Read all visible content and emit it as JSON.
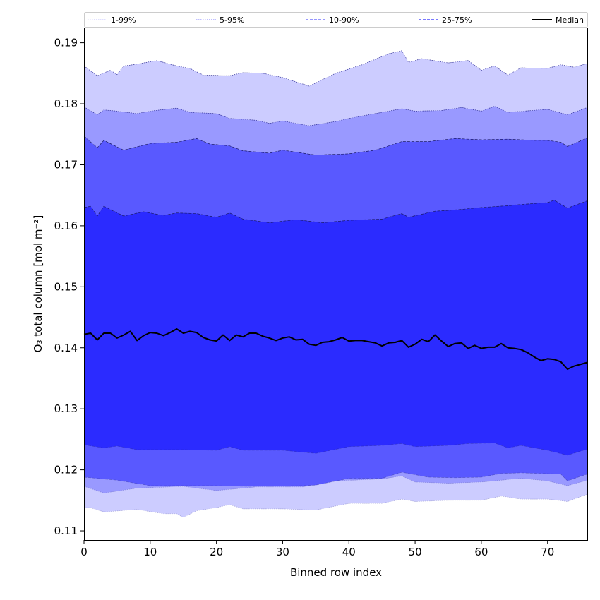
{
  "chart_data": {
    "type": "area",
    "xlabel": "Binned row index",
    "ylabel": "O₃ total column [mol m⁻²]",
    "xlim": [
      0,
      76
    ],
    "ylim": [
      0.1085,
      0.1925
    ],
    "xticks": [
      0,
      10,
      20,
      30,
      40,
      50,
      60,
      70
    ],
    "yticks": [
      0.11,
      0.12,
      0.13,
      0.14,
      0.15,
      0.16,
      0.17,
      0.18,
      0.19
    ],
    "legend_position": "top",
    "bands": [
      {
        "name": "1-99%",
        "color": "#ccccff",
        "line_style": "dotted",
        "lower_anchors": [
          [
            0,
            0.1138
          ],
          [
            1,
            0.1138
          ],
          [
            3,
            0.1131
          ],
          [
            8,
            0.1135
          ],
          [
            12,
            0.1128
          ],
          [
            14,
            0.1128
          ],
          [
            15,
            0.1122
          ],
          [
            17,
            0.1133
          ],
          [
            20,
            0.1138
          ],
          [
            22,
            0.1143
          ],
          [
            24,
            0.1136
          ],
          [
            30,
            0.1136
          ],
          [
            35,
            0.1134
          ],
          [
            40,
            0.1145
          ],
          [
            45,
            0.1145
          ],
          [
            48,
            0.1152
          ],
          [
            50,
            0.1148
          ],
          [
            55,
            0.115
          ],
          [
            60,
            0.115
          ],
          [
            63,
            0.1157
          ],
          [
            66,
            0.1152
          ],
          [
            70,
            0.1152
          ],
          [
            73,
            0.1148
          ],
          [
            76,
            0.116
          ]
        ],
        "upper_anchors": [
          [
            0,
            0.1862
          ],
          [
            2,
            0.1846
          ],
          [
            4,
            0.1855
          ],
          [
            5,
            0.1848
          ],
          [
            6,
            0.1862
          ],
          [
            8,
            0.1865
          ],
          [
            11,
            0.1871
          ],
          [
            14,
            0.1862
          ],
          [
            16,
            0.1858
          ],
          [
            18,
            0.1847
          ],
          [
            22,
            0.1846
          ],
          [
            24,
            0.1851
          ],
          [
            27,
            0.185
          ],
          [
            30,
            0.1843
          ],
          [
            34,
            0.1829
          ],
          [
            38,
            0.185
          ],
          [
            42,
            0.1864
          ],
          [
            46,
            0.1882
          ],
          [
            48,
            0.1887
          ],
          [
            49,
            0.1868
          ],
          [
            51,
            0.1874
          ],
          [
            55,
            0.1867
          ],
          [
            58,
            0.1871
          ],
          [
            60,
            0.1855
          ],
          [
            62,
            0.1862
          ],
          [
            64,
            0.1847
          ],
          [
            66,
            0.1859
          ],
          [
            70,
            0.1858
          ],
          [
            72,
            0.1864
          ],
          [
            74,
            0.186
          ],
          [
            76,
            0.1866
          ]
        ]
      },
      {
        "name": "5-95%",
        "color": "#9999ff",
        "line_style": "dotted",
        "lower_anchors": [
          [
            0,
            0.1173
          ],
          [
            3,
            0.1162
          ],
          [
            8,
            0.117
          ],
          [
            15,
            0.1173
          ],
          [
            20,
            0.1166
          ],
          [
            26,
            0.1172
          ],
          [
            33,
            0.1172
          ],
          [
            38,
            0.1182
          ],
          [
            45,
            0.1185
          ],
          [
            48,
            0.119
          ],
          [
            50,
            0.118
          ],
          [
            55,
            0.1178
          ],
          [
            60,
            0.118
          ],
          [
            66,
            0.1186
          ],
          [
            70,
            0.1182
          ],
          [
            73,
            0.1174
          ],
          [
            76,
            0.1183
          ]
        ],
        "upper_anchors": [
          [
            0,
            0.1795
          ],
          [
            2,
            0.1782
          ],
          [
            3,
            0.179
          ],
          [
            5,
            0.1788
          ],
          [
            8,
            0.1784
          ],
          [
            10,
            0.1788
          ],
          [
            14,
            0.1793
          ],
          [
            16,
            0.1786
          ],
          [
            20,
            0.1784
          ],
          [
            22,
            0.1776
          ],
          [
            26,
            0.1773
          ],
          [
            28,
            0.1768
          ],
          [
            30,
            0.1772
          ],
          [
            34,
            0.1764
          ],
          [
            38,
            0.1771
          ],
          [
            40,
            0.1776
          ],
          [
            44,
            0.1784
          ],
          [
            48,
            0.1792
          ],
          [
            50,
            0.1788
          ],
          [
            54,
            0.1789
          ],
          [
            57,
            0.1794
          ],
          [
            60,
            0.1788
          ],
          [
            62,
            0.1796
          ],
          [
            64,
            0.1786
          ],
          [
            70,
            0.1791
          ],
          [
            73,
            0.1782
          ],
          [
            76,
            0.1794
          ]
        ]
      },
      {
        "name": "10-90%",
        "color": "#5959ff",
        "line_style": "dashed",
        "lower_anchors": [
          [
            0,
            0.1188
          ],
          [
            5,
            0.1183
          ],
          [
            10,
            0.1174
          ],
          [
            20,
            0.1174
          ],
          [
            25,
            0.1173
          ],
          [
            33,
            0.1174
          ],
          [
            35,
            0.1175
          ],
          [
            40,
            0.1186
          ],
          [
            45,
            0.1186
          ],
          [
            48,
            0.1196
          ],
          [
            52,
            0.1188
          ],
          [
            56,
            0.1187
          ],
          [
            60,
            0.1188
          ],
          [
            63,
            0.1194
          ],
          [
            66,
            0.1195
          ],
          [
            72,
            0.1193
          ],
          [
            73,
            0.1182
          ],
          [
            76,
            0.1193
          ]
        ],
        "upper_anchors": [
          [
            0,
            0.1747
          ],
          [
            2,
            0.1728
          ],
          [
            3,
            0.174
          ],
          [
            6,
            0.1724
          ],
          [
            10,
            0.1735
          ],
          [
            14,
            0.1737
          ],
          [
            17,
            0.1743
          ],
          [
            19,
            0.1734
          ],
          [
            22,
            0.1731
          ],
          [
            24,
            0.1723
          ],
          [
            28,
            0.1719
          ],
          [
            30,
            0.1724
          ],
          [
            35,
            0.1716
          ],
          [
            40,
            0.1718
          ],
          [
            44,
            0.1724
          ],
          [
            48,
            0.1738
          ],
          [
            52,
            0.1738
          ],
          [
            56,
            0.1743
          ],
          [
            60,
            0.1741
          ],
          [
            64,
            0.1742
          ],
          [
            68,
            0.174
          ],
          [
            70,
            0.174
          ],
          [
            72,
            0.1737
          ],
          [
            73,
            0.173
          ],
          [
            76,
            0.1744
          ]
        ]
      },
      {
        "name": "25-75%",
        "color": "#2b2bff",
        "line_style": "dashed",
        "lower_anchors": [
          [
            0,
            0.1241
          ],
          [
            3,
            0.1236
          ],
          [
            5,
            0.1239
          ],
          [
            8,
            0.1233
          ],
          [
            15,
            0.1233
          ],
          [
            20,
            0.1232
          ],
          [
            22,
            0.1238
          ],
          [
            24,
            0.1232
          ],
          [
            30,
            0.1232
          ],
          [
            35,
            0.1227
          ],
          [
            40,
            0.1238
          ],
          [
            45,
            0.124
          ],
          [
            48,
            0.1243
          ],
          [
            50,
            0.1238
          ],
          [
            55,
            0.124
          ],
          [
            58,
            0.1243
          ],
          [
            62,
            0.1244
          ],
          [
            64,
            0.1236
          ],
          [
            66,
            0.124
          ],
          [
            70,
            0.1232
          ],
          [
            73,
            0.1224
          ],
          [
            76,
            0.1234
          ]
        ],
        "upper_anchors": [
          [
            0,
            0.163
          ],
          [
            1,
            0.1632
          ],
          [
            2,
            0.1616
          ],
          [
            3,
            0.1632
          ],
          [
            6,
            0.1616
          ],
          [
            9,
            0.1623
          ],
          [
            12,
            0.1617
          ],
          [
            14,
            0.1621
          ],
          [
            17,
            0.162
          ],
          [
            20,
            0.1614
          ],
          [
            22,
            0.1621
          ],
          [
            24,
            0.1611
          ],
          [
            28,
            0.1605
          ],
          [
            32,
            0.161
          ],
          [
            36,
            0.1605
          ],
          [
            40,
            0.1609
          ],
          [
            45,
            0.1611
          ],
          [
            48,
            0.162
          ],
          [
            49,
            0.1614
          ],
          [
            53,
            0.1624
          ],
          [
            56,
            0.1626
          ],
          [
            60,
            0.163
          ],
          [
            64,
            0.1633
          ],
          [
            66,
            0.1635
          ],
          [
            70,
            0.1638
          ],
          [
            71,
            0.1642
          ],
          [
            73,
            0.1629
          ],
          [
            76,
            0.1641
          ]
        ]
      }
    ],
    "series": [
      {
        "name": "Median",
        "color": "#000000",
        "x": [
          0,
          1,
          2,
          3,
          4,
          5,
          6,
          7,
          8,
          9,
          10,
          11,
          12,
          13,
          14,
          15,
          16,
          17,
          18,
          19,
          20,
          21,
          22,
          23,
          24,
          25,
          26,
          27,
          28,
          29,
          30,
          31,
          32,
          33,
          34,
          35,
          36,
          37,
          38,
          39,
          40,
          41,
          42,
          43,
          44,
          45,
          46,
          47,
          48,
          49,
          50,
          51,
          52,
          53,
          54,
          55,
          56,
          57,
          58,
          59,
          60,
          61,
          62,
          63,
          64,
          65,
          66,
          67,
          68,
          69,
          70,
          71,
          72,
          73,
          74,
          75,
          76
        ],
        "values": [
          0.1422,
          0.1424,
          0.1413,
          0.1424,
          0.1424,
          0.1416,
          0.1421,
          0.1427,
          0.1412,
          0.142,
          0.1425,
          0.1424,
          0.142,
          0.1425,
          0.1431,
          0.1424,
          0.1427,
          0.1425,
          0.1417,
          0.1413,
          0.1411,
          0.1421,
          0.1412,
          0.1421,
          0.1418,
          0.1424,
          0.1424,
          0.1419,
          0.1416,
          0.1412,
          0.1416,
          0.1418,
          0.1413,
          0.1414,
          0.1406,
          0.1404,
          0.1409,
          0.141,
          0.1413,
          0.1417,
          0.1411,
          0.1412,
          0.1412,
          0.141,
          0.1408,
          0.1403,
          0.1408,
          0.1409,
          0.1412,
          0.1401,
          0.1406,
          0.1414,
          0.141,
          0.1421,
          0.1411,
          0.1402,
          0.1407,
          0.1408,
          0.1399,
          0.1404,
          0.1399,
          0.1401,
          0.1401,
          0.1407,
          0.14,
          0.1399,
          0.1397,
          0.1392,
          0.1385,
          0.1379,
          0.1382,
          0.1381,
          0.1377,
          0.1365,
          0.137,
          0.1373,
          0.1376
        ]
      }
    ],
    "legend": [
      {
        "label": "1-99%",
        "color": "#ccccff",
        "style": "dotted"
      },
      {
        "label": "5-95%",
        "color": "#9999ff",
        "style": "dotted"
      },
      {
        "label": "10-90%",
        "color": "#5959ff",
        "style": "dashed"
      },
      {
        "label": "25-75%",
        "color": "#2b2bff",
        "style": "dashed"
      },
      {
        "label": "Median",
        "color": "#000000",
        "style": "solid"
      }
    ]
  }
}
